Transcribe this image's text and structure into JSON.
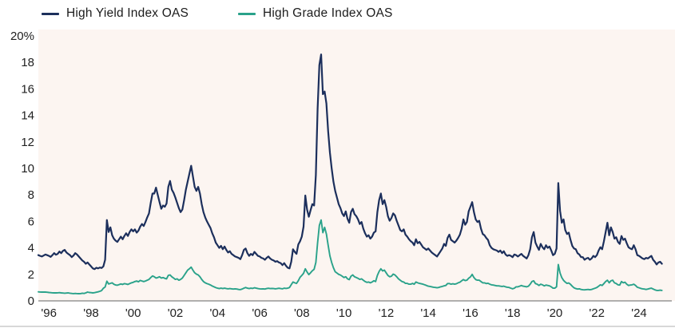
{
  "legend": {
    "items": [
      {
        "label": "High Yield Index OAS",
        "color": "#1c2f5c"
      },
      {
        "label": "High Grade Index OAS",
        "color": "#2aa28a"
      }
    ]
  },
  "chart_data": {
    "type": "line",
    "title": "",
    "legend_position": "top-left",
    "grid": false,
    "plot_background": "#fcf5f1",
    "axis_line_color": "#969696",
    "page_bottom_rule_color": "#cccccc",
    "x_axis": {
      "start_year": 1995.5,
      "step_years": 0.0833333,
      "tick_labels": [
        "'96",
        "'98",
        "'00",
        "'02",
        "'04",
        "'06",
        "'08",
        "'10",
        "'12",
        "'14",
        "'16",
        "'18",
        "'20",
        "'22",
        "'24"
      ],
      "tick_years": [
        1996,
        1998,
        2000,
        2002,
        2004,
        2006,
        2008,
        2010,
        2012,
        2014,
        2016,
        2018,
        2020,
        2022,
        2024
      ]
    },
    "y_axis": {
      "min": 0,
      "max": 20,
      "unit": "%",
      "tick_values": [
        0,
        2,
        4,
        6,
        8,
        10,
        12,
        14,
        16,
        18,
        20
      ],
      "tick_labels": [
        "0",
        "2",
        "4",
        "6",
        "8",
        "10",
        "12",
        "14",
        "16",
        "18",
        "20%"
      ]
    },
    "series": [
      {
        "name": "High Yield Index OAS",
        "color": "#1c2f5c",
        "stroke_width": 2.2,
        "values": [
          3.45,
          3.4,
          3.35,
          3.42,
          3.5,
          3.45,
          3.4,
          3.32,
          3.45,
          3.6,
          3.48,
          3.55,
          3.72,
          3.6,
          3.78,
          3.85,
          3.65,
          3.55,
          3.45,
          3.3,
          3.42,
          3.6,
          3.5,
          3.35,
          3.2,
          3.05,
          2.95,
          2.8,
          2.9,
          2.75,
          2.6,
          2.45,
          2.4,
          2.5,
          2.45,
          2.52,
          2.48,
          2.6,
          3.1,
          6.1,
          5.2,
          5.55,
          4.95,
          4.7,
          4.55,
          4.45,
          4.65,
          4.85,
          4.65,
          4.9,
          5.1,
          4.9,
          5.2,
          5.4,
          5.25,
          5.4,
          5.15,
          5.3,
          5.6,
          5.8,
          5.65,
          5.95,
          6.3,
          6.6,
          7.4,
          8.1,
          8.1,
          8.55,
          8.0,
          7.45,
          6.95,
          7.2,
          7.1,
          7.35,
          8.6,
          9.05,
          8.4,
          8.15,
          7.8,
          7.4,
          7.0,
          6.7,
          6.9,
          7.6,
          8.4,
          9.0,
          9.6,
          10.2,
          9.4,
          8.6,
          8.3,
          8.6,
          8.1,
          7.3,
          6.7,
          6.3,
          6.0,
          5.75,
          5.5,
          5.1,
          4.8,
          4.4,
          4.2,
          4.0,
          4.15,
          3.9,
          4.1,
          3.85,
          3.65,
          3.75,
          3.55,
          3.45,
          3.35,
          3.3,
          3.25,
          3.15,
          3.45,
          3.85,
          3.95,
          3.6,
          3.4,
          3.55,
          3.45,
          3.7,
          3.55,
          3.4,
          3.35,
          3.25,
          3.2,
          3.1,
          3.25,
          3.35,
          3.2,
          3.1,
          3.05,
          2.95,
          3.0,
          2.9,
          2.85,
          2.7,
          2.85,
          2.65,
          2.5,
          2.45,
          2.95,
          3.9,
          3.7,
          3.55,
          4.25,
          4.5,
          4.85,
          5.6,
          7.95,
          6.9,
          6.35,
          6.85,
          7.3,
          7.2,
          9.5,
          14.5,
          17.8,
          18.6,
          15.6,
          15.8,
          14.9,
          12.8,
          11.2,
          10.0,
          9.0,
          8.3,
          7.8,
          7.3,
          7.0,
          6.6,
          6.4,
          6.75,
          6.2,
          5.9,
          6.7,
          6.95,
          6.55,
          6.4,
          6.15,
          5.8,
          5.95,
          5.45,
          5.1,
          4.85,
          4.95,
          4.7,
          4.85,
          5.15,
          5.25,
          6.7,
          7.6,
          8.1,
          7.3,
          7.6,
          7.1,
          6.4,
          6.05,
          6.25,
          6.6,
          6.45,
          6.05,
          5.7,
          5.35,
          5.25,
          5.4,
          5.0,
          4.85,
          4.65,
          4.5,
          4.4,
          4.2,
          4.65,
          4.35,
          4.45,
          4.25,
          4.05,
          3.95,
          3.85,
          3.95,
          3.8,
          3.65,
          3.55,
          3.45,
          3.35,
          3.55,
          3.75,
          3.95,
          4.3,
          4.15,
          4.75,
          5.0,
          4.6,
          4.5,
          4.4,
          4.55,
          4.75,
          5.0,
          5.45,
          6.15,
          5.75,
          5.95,
          6.75,
          7.1,
          7.45,
          6.7,
          6.15,
          5.95,
          6.05,
          5.45,
          5.05,
          4.95,
          4.75,
          4.6,
          4.2,
          4.0,
          3.9,
          3.85,
          3.8,
          3.7,
          3.8,
          3.6,
          3.75,
          3.5,
          3.4,
          3.45,
          3.4,
          3.3,
          3.5,
          3.45,
          3.35,
          3.45,
          3.55,
          3.4,
          3.3,
          3.2,
          3.45,
          3.9,
          4.8,
          5.2,
          4.4,
          4.1,
          3.85,
          4.3,
          4.05,
          3.9,
          4.2,
          4.0,
          4.1,
          3.8,
          3.45,
          3.55,
          3.95,
          8.9,
          6.8,
          5.9,
          6.15,
          5.35,
          5.05,
          5.15,
          4.6,
          4.15,
          3.95,
          3.9,
          3.6,
          3.5,
          3.3,
          3.3,
          3.1,
          3.2,
          3.25,
          3.1,
          3.2,
          3.4,
          3.3,
          3.45,
          3.8,
          4.05,
          3.9,
          4.5,
          5.2,
          5.9,
          4.95,
          5.55,
          5.2,
          4.7,
          4.8,
          4.45,
          4.3,
          4.9,
          4.6,
          4.7,
          4.35,
          4.05,
          3.95,
          3.9,
          4.2,
          3.9,
          3.45,
          3.4,
          3.3,
          3.2,
          3.15,
          3.25,
          3.2,
          3.3,
          3.4,
          3.1,
          2.95,
          2.75,
          2.9,
          2.95,
          2.8
        ]
      },
      {
        "name": "High Grade Index OAS",
        "color": "#2aa28a",
        "stroke_width": 1.9,
        "values": [
          0.68,
          0.67,
          0.66,
          0.67,
          0.66,
          0.65,
          0.63,
          0.62,
          0.61,
          0.6,
          0.6,
          0.61,
          0.62,
          0.6,
          0.59,
          0.58,
          0.59,
          0.6,
          0.58,
          0.56,
          0.55,
          0.56,
          0.55,
          0.54,
          0.55,
          0.58,
          0.56,
          0.6,
          0.66,
          0.63,
          0.62,
          0.6,
          0.62,
          0.65,
          0.68,
          0.72,
          0.78,
          0.95,
          1.05,
          1.48,
          1.28,
          1.32,
          1.36,
          1.26,
          1.2,
          1.18,
          1.23,
          1.28,
          1.24,
          1.3,
          1.28,
          1.24,
          1.3,
          1.36,
          1.4,
          1.46,
          1.5,
          1.44,
          1.54,
          1.5,
          1.46,
          1.5,
          1.56,
          1.62,
          1.76,
          1.88,
          1.82,
          1.72,
          1.76,
          1.82,
          1.72,
          1.76,
          1.7,
          1.66,
          1.92,
          1.96,
          1.82,
          1.72,
          1.62,
          1.66,
          1.56,
          1.62,
          1.72,
          1.92,
          2.12,
          2.32,
          2.42,
          2.55,
          2.32,
          2.12,
          2.02,
          1.96,
          1.82,
          1.62,
          1.46,
          1.36,
          1.3,
          1.26,
          1.2,
          1.12,
          1.06,
          1.0,
          0.96,
          0.93,
          0.96,
          0.93,
          0.96,
          0.93,
          0.91,
          0.93,
          0.91,
          0.89,
          0.91,
          0.89,
          0.86,
          0.85,
          0.89,
          0.96,
          1.01,
          0.96,
          0.93,
          0.96,
          0.94,
          0.99,
          0.96,
          0.93,
          0.91,
          0.9,
          0.91,
          0.89,
          0.93,
          0.95,
          0.93,
          0.94,
          0.93,
          0.91,
          0.93,
          0.95,
          0.93,
          0.91,
          0.96,
          0.94,
          0.96,
          1.01,
          1.22,
          1.42,
          1.36,
          1.32,
          1.52,
          1.78,
          1.92,
          2.08,
          2.42,
          2.18,
          1.98,
          2.12,
          2.28,
          2.38,
          2.9,
          4.4,
          5.7,
          6.1,
          5.15,
          5.55,
          5.05,
          4.2,
          3.4,
          2.9,
          2.5,
          2.2,
          2.1,
          2.0,
          1.95,
          1.86,
          1.76,
          1.82,
          1.66,
          1.6,
          1.86,
          1.96,
          1.82,
          1.76,
          1.7,
          1.62,
          1.66,
          1.56,
          1.46,
          1.4,
          1.42,
          1.36,
          1.42,
          1.52,
          1.46,
          1.92,
          2.22,
          2.42,
          2.26,
          2.32,
          2.12,
          1.92,
          1.82,
          1.86,
          2.02,
          1.96,
          1.82,
          1.66,
          1.56,
          1.46,
          1.42,
          1.32,
          1.32,
          1.26,
          1.26,
          1.32,
          1.26,
          1.42,
          1.36,
          1.32,
          1.29,
          1.26,
          1.21,
          1.16,
          1.11,
          1.09,
          1.06,
          1.03,
          1.01,
          0.99,
          1.01,
          1.06,
          1.09,
          1.13,
          1.16,
          1.31,
          1.31,
          1.26,
          1.29,
          1.26,
          1.29,
          1.36,
          1.41,
          1.51,
          1.61,
          1.53,
          1.56,
          1.71,
          1.81,
          2.0,
          1.76,
          1.61,
          1.56,
          1.56,
          1.46,
          1.36,
          1.36,
          1.31,
          1.33,
          1.26,
          1.21,
          1.19,
          1.16,
          1.13,
          1.13,
          1.11,
          1.09,
          1.11,
          1.06,
          1.03,
          1.01,
          0.96,
          0.91,
          0.96,
          1.06,
          1.06,
          1.11,
          1.16,
          1.11,
          1.09,
          1.06,
          1.11,
          1.26,
          1.46,
          1.51,
          1.31,
          1.26,
          1.16,
          1.26,
          1.21,
          1.13,
          1.19,
          1.16,
          1.13,
          1.06,
          0.96,
          0.96,
          1.06,
          2.75,
          2.1,
          1.75,
          1.55,
          1.42,
          1.32,
          1.35,
          1.25,
          1.1,
          0.99,
          0.93,
          0.89,
          0.91,
          0.86,
          0.84,
          0.83,
          0.85,
          0.86,
          0.84,
          0.86,
          0.91,
          0.96,
          1.01,
          1.11,
          1.21,
          1.16,
          1.31,
          1.46,
          1.56,
          1.36,
          1.51,
          1.56,
          1.36,
          1.31,
          1.21,
          1.19,
          1.46,
          1.36,
          1.41,
          1.26,
          1.16,
          1.19,
          1.21,
          1.26,
          1.16,
          1.03,
          0.99,
          0.94,
          0.91,
          0.89,
          0.86,
          0.89,
          0.93,
          0.96,
          0.9,
          0.83,
          0.79,
          0.79,
          0.81,
          0.79
        ]
      }
    ]
  }
}
